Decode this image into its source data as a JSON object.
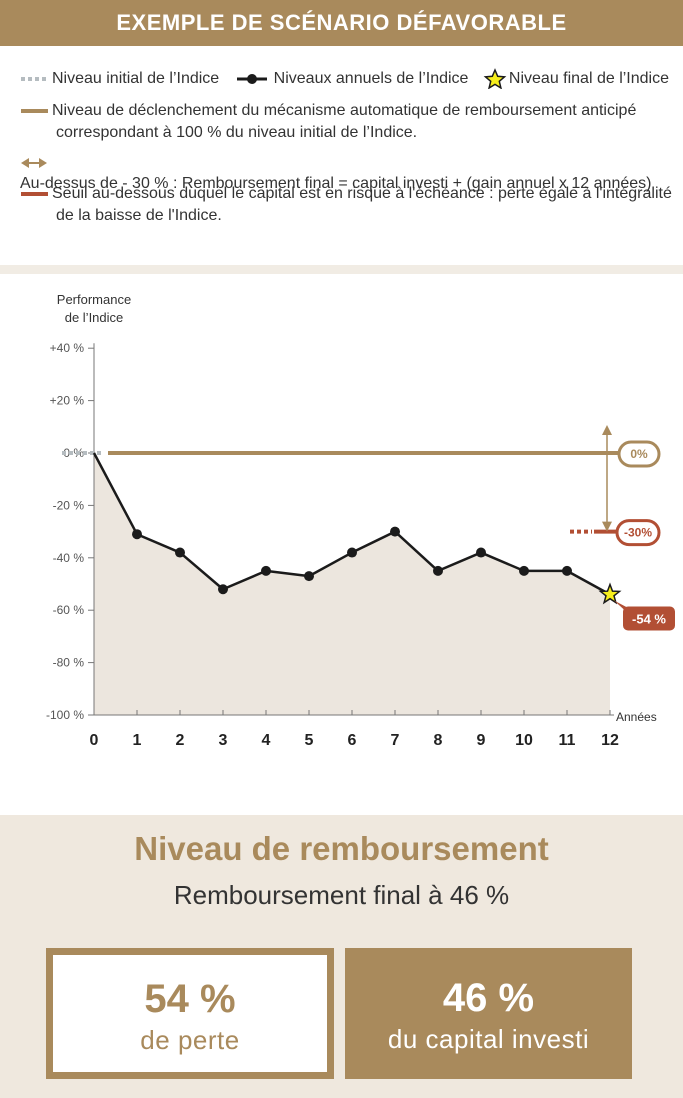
{
  "title": "EXEMPLE DE SCÉNARIO DÉFAVORABLE",
  "legend": {
    "initial": "Niveau initial de l’Indice",
    "annual": "Niveaux annuels de l’Indice",
    "final": "Niveau final de l’Indice",
    "trigger_line1": "Niveau de déclenchement du mécanisme automatique de remboursement anticipé",
    "trigger_line2": "correspondant à 100 % du niveau initial de l’Indice.",
    "above": "Au-dessus de - 30 % : Remboursement final = capital investi + (gain annuel x 12 années)",
    "threshold_line1": "Seuil au-dessous duquel le capital est en risque à l'échéance : perte égale à l'intégralité",
    "threshold_line2": "de la baisse de l'Indice."
  },
  "colors": {
    "gold": "#a98a5c",
    "rust": "#b24f34",
    "dotted": "#b5bcc0",
    "area": "#ece6de",
    "line": "#1b1b1b",
    "star": "#f6ee1c"
  },
  "chart_data": {
    "type": "line",
    "ylabel_line1": "Performance",
    "ylabel_line2": "de l’Indice",
    "xlabel": "Années",
    "x": [
      0,
      1,
      2,
      3,
      4,
      5,
      6,
      7,
      8,
      9,
      10,
      11,
      12
    ],
    "xtick_labels": [
      "0",
      "1",
      "2",
      "3",
      "4",
      "5",
      "6",
      "7",
      "8",
      "9",
      "10",
      "11",
      "12"
    ],
    "values": [
      0,
      -31,
      -38,
      -52,
      -45,
      -47,
      -38,
      -30,
      -45,
      -38,
      -45,
      -45,
      -54
    ],
    "ylim": [
      -100,
      40
    ],
    "yticks": [
      40,
      20,
      0,
      -20,
      -40,
      -60,
      -80,
      -100
    ],
    "ytick_labels": [
      "+40 %",
      "+20 %",
      "0 %",
      "-20 %",
      "-40 %",
      "-60 %",
      "-80 %",
      "-100 %"
    ],
    "trigger_level": 0,
    "threshold_level": -30,
    "trigger_badge": "0%",
    "threshold_badge": "-30%",
    "final_badge": "-54 %",
    "grid": false
  },
  "result": {
    "title": "Niveau de remboursement",
    "subtitle": "Remboursement final à 46 %",
    "loss_value": "54 %",
    "loss_label": "de perte",
    "capital_value": "46 %",
    "capital_label": "du capital investi"
  }
}
